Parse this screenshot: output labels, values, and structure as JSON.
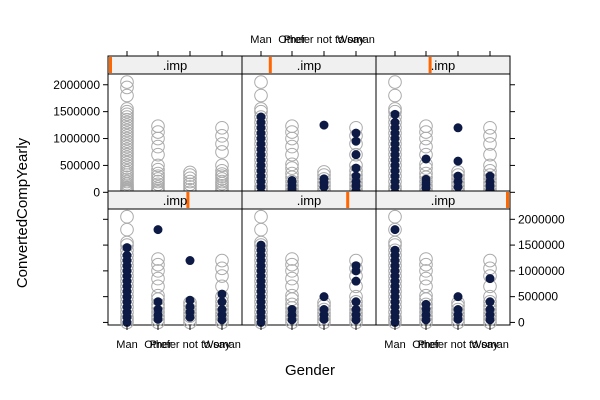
{
  "chart_data": {
    "type": "scatter",
    "xlabel": "Gender",
    "ylabel": "ConvertedCompYearly",
    "categories": [
      "Man",
      "Other",
      "Prefer not to say",
      "Woman"
    ],
    "ylim": [
      -50000,
      2200000
    ],
    "yticks": [
      0,
      500000,
      1000000,
      1500000,
      2000000
    ],
    "ytick_labels": [
      "0",
      "500000",
      "1000000",
      "1500000",
      "2000000"
    ],
    "layout": {
      "columns": 3,
      "rows": 2
    },
    "observed_color": "#aaaaaa",
    "imputed_color": "#0d1a45",
    "strip_indicator_color": "#ff6600",
    "strip_background": "#f0f0f0",
    "panels": [
      {
        "strip": ".imp",
        "imp_index": 0,
        "observed": [
          {
            "cat": 0,
            "values": [
              0,
              20000,
              40000,
              60000,
              80000,
              100000,
              130000,
              160000,
              200000,
              240000,
              280000,
              320000,
              360000,
              400000,
              450000,
              500000,
              550000,
              600000,
              650000,
              700000,
              750000,
              800000,
              850000,
              900000,
              950000,
              1000000,
              1050000,
              1100000,
              1150000,
              1200000,
              1250000,
              1300000,
              1350000,
              1400000,
              1450000,
              1500000,
              1550000,
              1800000,
              1950000,
              2050000
            ]
          },
          {
            "cat": 1,
            "values": [
              0,
              30000,
              60000,
              100000,
              150000,
              200000,
              250000,
              300000,
              350000,
              420000,
              500000,
              700000,
              850000,
              1000000,
              1120000,
              1230000
            ]
          },
          {
            "cat": 2,
            "values": [
              0,
              50000,
              100000,
              150000,
              200000,
              260000,
              320000,
              370000
            ]
          },
          {
            "cat": 3,
            "values": [
              0,
              40000,
              80000,
              120000,
              160000,
              200000,
              250000,
              300000,
              340000,
              400000,
              500000,
              750000,
              900000,
              1050000,
              1200000
            ]
          }
        ],
        "imputed": []
      },
      {
        "strip": ".imp",
        "imp_index": 1,
        "observed": [
          {
            "cat": 0,
            "values": [
              0,
              50000,
              100000,
              200000,
              300000,
              400000,
              500000,
              600000,
              700000,
              800000,
              900000,
              1000000,
              1100000,
              1200000,
              1300000,
              1400000,
              1500000,
              1550000,
              1800000,
              2050000
            ]
          },
          {
            "cat": 1,
            "values": [
              0,
              60000,
              120000,
              200000,
              280000,
              350000,
              450000,
              520000,
              700000,
              850000,
              1000000,
              1120000,
              1230000
            ]
          },
          {
            "cat": 2,
            "values": [
              0,
              60000,
              120000,
              180000,
              250000,
              320000,
              380000
            ]
          },
          {
            "cat": 3,
            "values": [
              0,
              60000,
              120000,
              180000,
              250000,
              320000,
              400000,
              500000,
              700000,
              900000,
              1050000,
              1200000
            ]
          }
        ],
        "imputed": [
          {
            "cat": 0,
            "values": [
              0,
              100000,
              200000,
              300000,
              400000,
              500000,
              600000,
              700000,
              800000,
              900000,
              1000000,
              1100000,
              1200000,
              1300000,
              1400000
            ]
          },
          {
            "cat": 1,
            "values": [
              60000,
              120000,
              180000,
              220000
            ]
          },
          {
            "cat": 2,
            "values": [
              100000,
              180000,
              250000,
              1250000
            ]
          },
          {
            "cat": 3,
            "values": [
              30000,
              120000,
              200000,
              300000,
              450000,
              700000,
              950000,
              1100000
            ]
          }
        ]
      },
      {
        "strip": ".imp",
        "imp_index": 2,
        "observed": [
          {
            "cat": 0,
            "values": [
              0,
              50000,
              100000,
              200000,
              300000,
              400000,
              500000,
              600000,
              700000,
              800000,
              900000,
              1000000,
              1100000,
              1200000,
              1300000,
              1400000,
              1500000,
              1550000,
              1800000,
              2050000
            ]
          },
          {
            "cat": 1,
            "values": [
              0,
              60000,
              120000,
              200000,
              280000,
              350000,
              450000,
              520000,
              700000,
              850000,
              1000000,
              1120000,
              1230000
            ]
          },
          {
            "cat": 2,
            "values": [
              0,
              60000,
              120000,
              180000,
              250000,
              320000,
              380000
            ]
          },
          {
            "cat": 3,
            "values": [
              0,
              60000,
              120000,
              180000,
              250000,
              320000,
              400000,
              500000,
              700000,
              900000,
              1050000,
              1200000
            ]
          }
        ],
        "imputed": [
          {
            "cat": 0,
            "values": [
              0,
              100000,
              200000,
              300000,
              400000,
              500000,
              600000,
              700000,
              800000,
              900000,
              1000000,
              1100000,
              1200000,
              1300000,
              1450000
            ]
          },
          {
            "cat": 1,
            "values": [
              80000,
              160000,
              240000,
              620000
            ]
          },
          {
            "cat": 2,
            "values": [
              100000,
              200000,
              300000,
              580000,
              1200000
            ]
          },
          {
            "cat": 3,
            "values": [
              40000,
              120000,
              200000,
              300000
            ]
          }
        ]
      },
      {
        "strip": ".imp",
        "imp_index": 3,
        "observed": [
          {
            "cat": 0,
            "values": [
              0,
              50000,
              100000,
              200000,
              300000,
              400000,
              500000,
              600000,
              700000,
              800000,
              900000,
              1000000,
              1100000,
              1200000,
              1300000,
              1400000,
              1500000,
              1550000,
              1800000,
              2050000
            ]
          },
          {
            "cat": 1,
            "values": [
              0,
              60000,
              120000,
              200000,
              280000,
              350000,
              450000,
              520000,
              700000,
              850000,
              1000000,
              1120000,
              1230000
            ]
          },
          {
            "cat": 2,
            "values": [
              0,
              60000,
              120000,
              180000,
              250000,
              320000,
              380000
            ]
          },
          {
            "cat": 3,
            "values": [
              0,
              60000,
              120000,
              180000,
              250000,
              320000,
              400000,
              500000,
              700000,
              900000,
              1050000,
              1200000
            ]
          }
        ],
        "imputed": [
          {
            "cat": 0,
            "values": [
              0,
              100000,
              200000,
              300000,
              400000,
              500000,
              600000,
              700000,
              800000,
              900000,
              1000000,
              1100000,
              1200000,
              1300000,
              1450000
            ]
          },
          {
            "cat": 1,
            "values": [
              60000,
              150000,
              250000,
              400000,
              1800000
            ]
          },
          {
            "cat": 2,
            "values": [
              100000,
              200000,
              300000,
              430000,
              1200000
            ]
          },
          {
            "cat": 3,
            "values": [
              50000,
              150000,
              250000,
              400000,
              550000
            ]
          }
        ]
      },
      {
        "strip": ".imp",
        "imp_index": 4,
        "observed": [
          {
            "cat": 0,
            "values": [
              0,
              50000,
              100000,
              200000,
              300000,
              400000,
              500000,
              600000,
              700000,
              800000,
              900000,
              1000000,
              1100000,
              1200000,
              1300000,
              1400000,
              1500000,
              1550000,
              1800000,
              2050000
            ]
          },
          {
            "cat": 1,
            "values": [
              0,
              60000,
              120000,
              200000,
              280000,
              350000,
              450000,
              520000,
              700000,
              850000,
              1000000,
              1120000,
              1230000
            ]
          },
          {
            "cat": 2,
            "values": [
              0,
              60000,
              120000,
              180000,
              250000,
              320000,
              380000
            ]
          },
          {
            "cat": 3,
            "values": [
              0,
              60000,
              120000,
              180000,
              250000,
              320000,
              400000,
              500000,
              700000,
              900000,
              1050000,
              1200000
            ]
          }
        ],
        "imputed": [
          {
            "cat": 0,
            "values": [
              0,
              100000,
              200000,
              300000,
              400000,
              500000,
              600000,
              700000,
              800000,
              900000,
              1000000,
              1100000,
              1200000,
              1300000,
              1400000,
              1500000
            ]
          },
          {
            "cat": 1,
            "values": [
              50000,
              150000,
              250000
            ]
          },
          {
            "cat": 2,
            "values": [
              60000,
              150000,
              250000,
              500000
            ]
          },
          {
            "cat": 3,
            "values": [
              50000,
              150000,
              250000,
              400000,
              800000,
              1000000,
              1100000
            ]
          }
        ]
      },
      {
        "strip": ".imp",
        "imp_index": 5,
        "observed": [
          {
            "cat": 0,
            "values": [
              0,
              50000,
              100000,
              200000,
              300000,
              400000,
              500000,
              600000,
              700000,
              800000,
              900000,
              1000000,
              1100000,
              1200000,
              1300000,
              1400000,
              1500000,
              1550000,
              1800000,
              2050000
            ]
          },
          {
            "cat": 1,
            "values": [
              0,
              60000,
              120000,
              200000,
              280000,
              350000,
              450000,
              520000,
              700000,
              850000,
              1000000,
              1120000,
              1230000
            ]
          },
          {
            "cat": 2,
            "values": [
              0,
              60000,
              120000,
              180000,
              250000,
              320000,
              380000
            ]
          },
          {
            "cat": 3,
            "values": [
              0,
              60000,
              120000,
              180000,
              250000,
              320000,
              400000,
              500000,
              700000,
              900000,
              1050000,
              1200000
            ]
          }
        ],
        "imputed": [
          {
            "cat": 0,
            "values": [
              0,
              100000,
              200000,
              300000,
              400000,
              500000,
              600000,
              700000,
              800000,
              900000,
              1000000,
              1100000,
              1200000,
              1300000,
              1400000,
              1800000
            ]
          },
          {
            "cat": 1,
            "values": [
              50000,
              150000,
              250000,
              350000
            ]
          },
          {
            "cat": 2,
            "values": [
              60000,
              150000,
              250000,
              500000
            ]
          },
          {
            "cat": 3,
            "values": [
              50000,
              150000,
              250000,
              400000,
              850000
            ]
          }
        ]
      }
    ]
  }
}
